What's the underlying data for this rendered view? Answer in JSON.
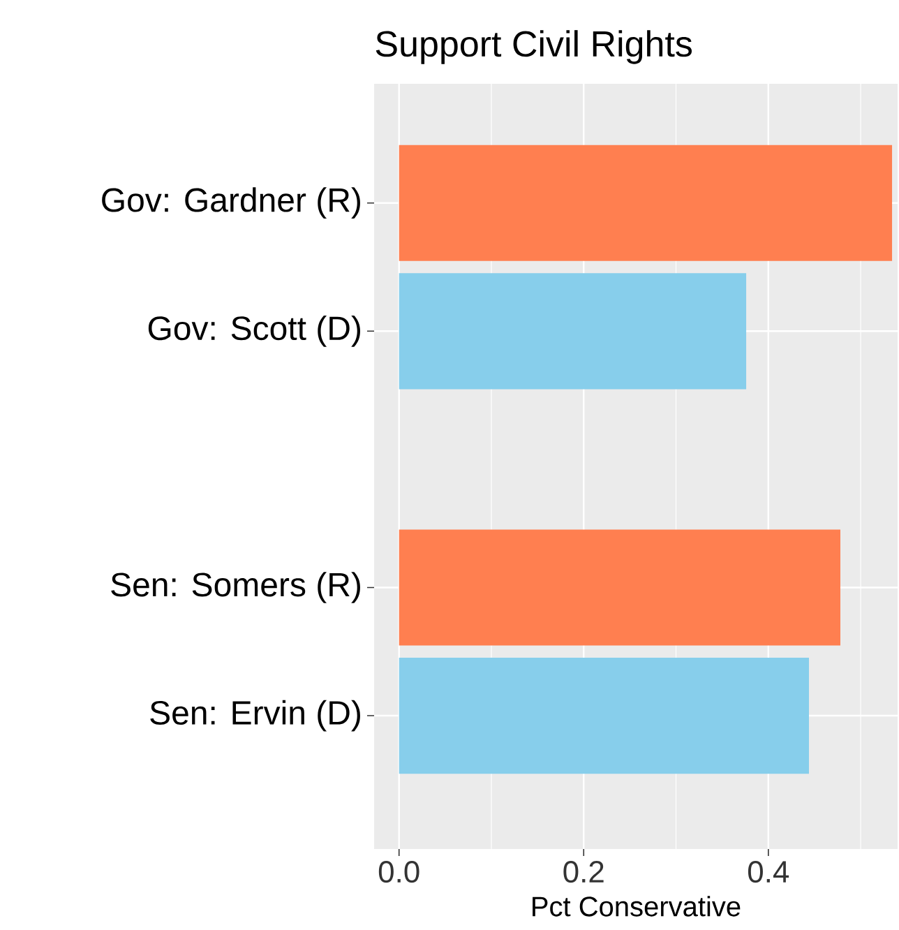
{
  "chart_data": {
    "type": "bar",
    "orientation": "horizontal",
    "title": "Support Civil Rights",
    "xlabel": "Pct Conservative",
    "categories": [
      "Gov: Gardner (R)",
      "Gov: Scott (D)",
      null,
      "Sen: Somers (R)",
      "Sen: Ervin (D)"
    ],
    "values": [
      0.534,
      0.376,
      null,
      0.478,
      0.444
    ],
    "colors": [
      "#ff7f50",
      "#87ceeb",
      null,
      "#ff7f50",
      "#87ceeb"
    ],
    "xlim": [
      -0.027,
      0.54
    ],
    "xticks": [
      {
        "value": 0,
        "label": "0.0"
      },
      0.2,
      0.4
    ],
    "grid": true
  }
}
